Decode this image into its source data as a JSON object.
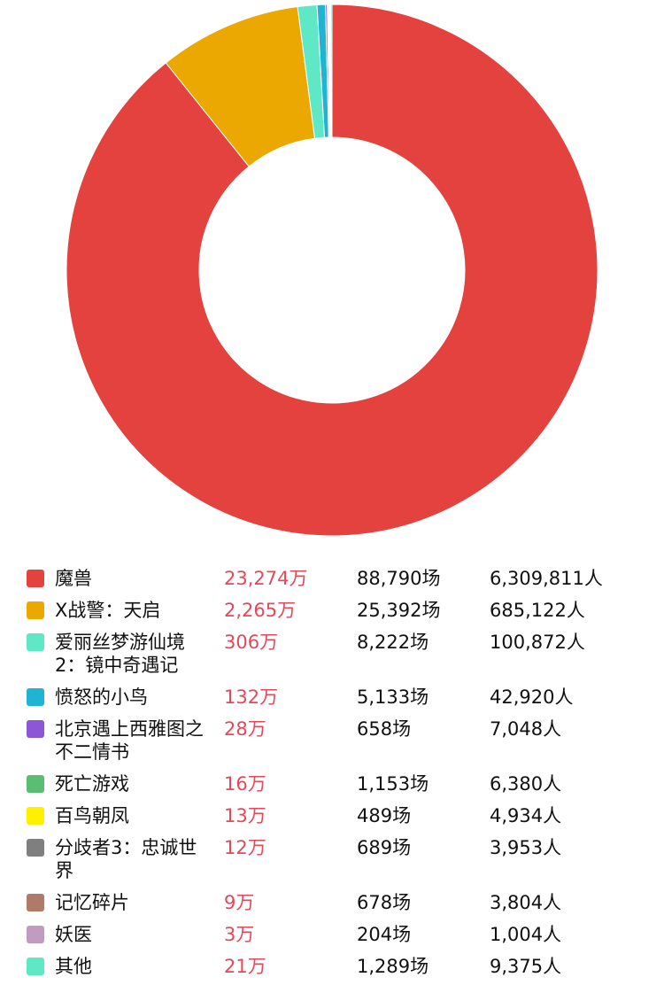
{
  "chart_data": {
    "type": "pie",
    "donut": true,
    "legend_position": "bottom",
    "series": [
      {
        "name": "魔兽",
        "revenue": 23274,
        "revenue_label": "23,274万",
        "shows_label": "88,790场",
        "viewers_label": "6,309,811人",
        "color": "#e3423f"
      },
      {
        "name": "X战警：天启",
        "revenue": 2265,
        "revenue_label": "2,265万",
        "shows_label": "25,392场",
        "viewers_label": "685,122人",
        "color": "#eba800"
      },
      {
        "name": "爱丽丝梦游仙境2：镜中奇遇记",
        "revenue": 306,
        "revenue_label": "306万",
        "shows_label": "8,222场",
        "viewers_label": "100,872人",
        "color": "#5fe8c5"
      },
      {
        "name": "愤怒的小鸟",
        "revenue": 132,
        "revenue_label": "132万",
        "shows_label": "5,133场",
        "viewers_label": "42,920人",
        "color": "#1fb4d2"
      },
      {
        "name": "北京遇上西雅图之不二情书",
        "revenue": 28,
        "revenue_label": "28万",
        "shows_label": "658场",
        "viewers_label": "7,048人",
        "color": "#8d55d8"
      },
      {
        "name": "死亡游戏",
        "revenue": 16,
        "revenue_label": "16万",
        "shows_label": "1,153场",
        "viewers_label": "6,380人",
        "color": "#5bbd74"
      },
      {
        "name": "百鸟朝凤",
        "revenue": 13,
        "revenue_label": "13万",
        "shows_label": "489场",
        "viewers_label": "4,934人",
        "color": "#ffef00"
      },
      {
        "name": "分歧者3：忠诚世界",
        "revenue": 12,
        "revenue_label": "12万",
        "shows_label": "689场",
        "viewers_label": "3,953人",
        "color": "#7f7f7f"
      },
      {
        "name": "记忆碎片",
        "revenue": 9,
        "revenue_label": "9万",
        "shows_label": "678场",
        "viewers_label": "3,804人",
        "color": "#b07a68"
      },
      {
        "name": "妖医",
        "revenue": 3,
        "revenue_label": "3万",
        "shows_label": "204场",
        "viewers_label": "1,004人",
        "color": "#c29cc0"
      },
      {
        "name": "其他",
        "revenue": 21,
        "revenue_label": "21万",
        "shows_label": "1,289场",
        "viewers_label": "9,375人",
        "color": "#5fe8c5"
      }
    ]
  }
}
